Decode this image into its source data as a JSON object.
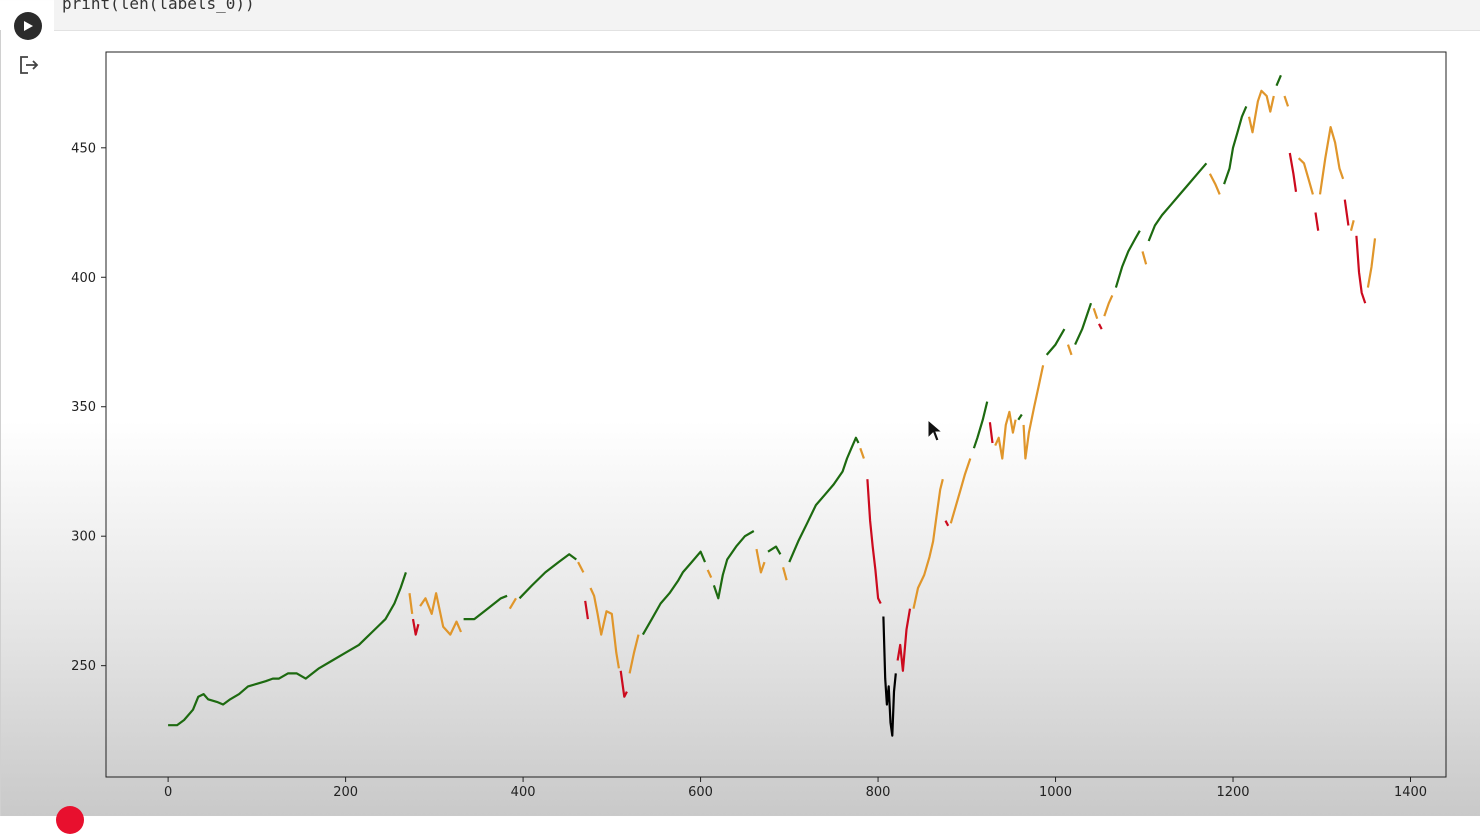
{
  "cell": {
    "code": "print(len(labels_0))",
    "run_icon": "play-icon",
    "output_icon": "output-arrow-icon"
  },
  "colors": {
    "green": "#1d6a10",
    "orange": "#e0962b",
    "red": "#cc0a1e",
    "black": "#000000"
  },
  "chart_data": {
    "type": "line",
    "title": "",
    "xlabel": "",
    "ylabel": "",
    "xlim": [
      -70,
      1440
    ],
    "ylim": [
      207,
      487
    ],
    "x_ticks": [
      0,
      200,
      400,
      600,
      800,
      1000,
      1200,
      1400
    ],
    "y_ticks": [
      250,
      300,
      350,
      400,
      450
    ],
    "grid": false,
    "legend": "none",
    "segments": [
      {
        "color": "green",
        "points": [
          [
            0,
            227
          ],
          [
            10,
            227
          ],
          [
            18,
            229
          ],
          [
            28,
            233
          ],
          [
            34,
            238
          ],
          [
            40,
            239
          ],
          [
            45,
            237
          ],
          [
            55,
            236
          ],
          [
            62,
            235
          ],
          [
            70,
            237
          ],
          [
            80,
            239
          ],
          [
            90,
            242
          ],
          [
            100,
            243
          ],
          [
            110,
            244
          ],
          [
            118,
            245
          ],
          [
            125,
            245
          ],
          [
            135,
            247
          ],
          [
            145,
            247
          ],
          [
            155,
            245
          ],
          [
            170,
            249
          ],
          [
            185,
            252
          ],
          [
            200,
            255
          ],
          [
            215,
            258
          ],
          [
            230,
            263
          ],
          [
            245,
            268
          ],
          [
            255,
            274
          ],
          [
            262,
            280
          ],
          [
            268,
            286
          ]
        ]
      },
      {
        "color": "orange",
        "points": [
          [
            272,
            278
          ],
          [
            275,
            270
          ]
        ]
      },
      {
        "color": "red",
        "points": [
          [
            276,
            268
          ],
          [
            279,
            262
          ],
          [
            282,
            266
          ]
        ]
      },
      {
        "color": "orange",
        "points": [
          [
            284,
            273
          ],
          [
            290,
            276
          ],
          [
            297,
            270
          ],
          [
            302,
            278
          ],
          [
            310,
            265
          ],
          [
            318,
            262
          ],
          [
            325,
            267
          ],
          [
            330,
            263
          ]
        ]
      },
      {
        "color": "green",
        "points": [
          [
            333,
            268
          ],
          [
            345,
            268
          ],
          [
            360,
            272
          ],
          [
            375,
            276
          ],
          [
            382,
            277
          ]
        ]
      },
      {
        "color": "orange",
        "points": [
          [
            385,
            272
          ],
          [
            392,
            276
          ]
        ]
      },
      {
        "color": "green",
        "points": [
          [
            396,
            276
          ],
          [
            410,
            281
          ],
          [
            425,
            286
          ],
          [
            440,
            290
          ],
          [
            452,
            293
          ],
          [
            460,
            291
          ]
        ]
      },
      {
        "color": "orange",
        "points": [
          [
            462,
            290
          ],
          [
            468,
            286
          ]
        ]
      },
      {
        "color": "red",
        "points": [
          [
            470,
            275
          ],
          [
            473,
            268
          ]
        ]
      },
      {
        "color": "orange",
        "points": [
          [
            476,
            280
          ],
          [
            480,
            277
          ],
          [
            484,
            270
          ],
          [
            488,
            262
          ],
          [
            494,
            271
          ],
          [
            500,
            270
          ],
          [
            505,
            255
          ],
          [
            508,
            249
          ]
        ]
      },
      {
        "color": "red",
        "points": [
          [
            510,
            248
          ],
          [
            514,
            238
          ],
          [
            517,
            240
          ]
        ]
      },
      {
        "color": "orange",
        "points": [
          [
            520,
            247
          ],
          [
            525,
            255
          ],
          [
            530,
            262
          ]
        ]
      },
      {
        "color": "green",
        "points": [
          [
            535,
            262
          ],
          [
            545,
            268
          ],
          [
            555,
            274
          ],
          [
            565,
            278
          ],
          [
            575,
            283
          ],
          [
            580,
            286
          ],
          [
            590,
            290
          ],
          [
            600,
            294
          ],
          [
            605,
            290
          ]
        ]
      },
      {
        "color": "orange",
        "points": [
          [
            608,
            287
          ],
          [
            612,
            284
          ]
        ]
      },
      {
        "color": "green",
        "points": [
          [
            615,
            281
          ],
          [
            620,
            276
          ],
          [
            625,
            285
          ],
          [
            630,
            291
          ],
          [
            640,
            296
          ],
          [
            650,
            300
          ],
          [
            660,
            302
          ]
        ]
      },
      {
        "color": "orange",
        "points": [
          [
            663,
            295
          ],
          [
            668,
            286
          ],
          [
            672,
            290
          ]
        ]
      },
      {
        "color": "green",
        "points": [
          [
            676,
            294
          ],
          [
            685,
            296
          ],
          [
            690,
            293
          ]
        ]
      },
      {
        "color": "orange",
        "points": [
          [
            693,
            288
          ],
          [
            697,
            283
          ]
        ]
      },
      {
        "color": "green",
        "points": [
          [
            700,
            290
          ],
          [
            710,
            298
          ],
          [
            720,
            305
          ],
          [
            730,
            312
          ],
          [
            740,
            316
          ],
          [
            750,
            320
          ],
          [
            760,
            325
          ],
          [
            765,
            330
          ],
          [
            770,
            334
          ],
          [
            775,
            338
          ],
          [
            778,
            336
          ]
        ]
      },
      {
        "color": "orange",
        "points": [
          [
            780,
            334
          ],
          [
            784,
            330
          ]
        ]
      },
      {
        "color": "red",
        "points": [
          [
            788,
            322
          ],
          [
            791,
            306
          ],
          [
            794,
            296
          ],
          [
            797,
            287
          ],
          [
            800,
            276
          ],
          [
            803,
            274
          ]
        ]
      },
      {
        "color": "black",
        "points": [
          [
            806,
            269
          ],
          [
            808,
            245
          ],
          [
            810,
            235
          ],
          [
            812,
            242
          ],
          [
            814,
            228
          ],
          [
            816,
            223
          ],
          [
            818,
            240
          ],
          [
            820,
            247
          ]
        ]
      },
      {
        "color": "red",
        "points": [
          [
            822,
            252
          ],
          [
            825,
            258
          ],
          [
            828,
            248
          ],
          [
            832,
            264
          ],
          [
            836,
            272
          ]
        ]
      },
      {
        "color": "orange",
        "points": [
          [
            840,
            272
          ],
          [
            845,
            280
          ],
          [
            852,
            285
          ],
          [
            858,
            292
          ],
          [
            862,
            298
          ],
          [
            866,
            308
          ],
          [
            870,
            318
          ],
          [
            873,
            322
          ]
        ]
      },
      {
        "color": "red",
        "points": [
          [
            876,
            306
          ],
          [
            879,
            304
          ]
        ]
      },
      {
        "color": "orange",
        "points": [
          [
            882,
            305
          ],
          [
            888,
            312
          ],
          [
            893,
            318
          ],
          [
            898,
            324
          ],
          [
            904,
            330
          ]
        ]
      },
      {
        "color": "green",
        "points": [
          [
            908,
            334
          ],
          [
            912,
            338
          ],
          [
            918,
            345
          ],
          [
            923,
            352
          ]
        ]
      },
      {
        "color": "red",
        "points": [
          [
            926,
            344
          ],
          [
            929,
            336
          ]
        ]
      },
      {
        "color": "orange",
        "points": [
          [
            932,
            335
          ],
          [
            936,
            338
          ],
          [
            940,
            330
          ],
          [
            944,
            343
          ],
          [
            948,
            348
          ],
          [
            952,
            340
          ],
          [
            955,
            345
          ]
        ]
      },
      {
        "color": "green",
        "points": [
          [
            958,
            345
          ],
          [
            962,
            347
          ]
        ]
      },
      {
        "color": "orange",
        "points": [
          [
            964,
            343
          ],
          [
            966,
            330
          ],
          [
            970,
            340
          ],
          [
            976,
            350
          ],
          [
            981,
            358
          ],
          [
            986,
            366
          ]
        ]
      },
      {
        "color": "green",
        "points": [
          [
            990,
            370
          ],
          [
            1000,
            374
          ],
          [
            1010,
            380
          ]
        ]
      },
      {
        "color": "orange",
        "points": [
          [
            1014,
            374
          ],
          [
            1018,
            370
          ]
        ]
      },
      {
        "color": "green",
        "points": [
          [
            1022,
            374
          ],
          [
            1030,
            380
          ],
          [
            1036,
            386
          ],
          [
            1040,
            390
          ]
        ]
      },
      {
        "color": "orange",
        "points": [
          [
            1043,
            388
          ],
          [
            1047,
            384
          ]
        ]
      },
      {
        "color": "red",
        "points": [
          [
            1049,
            382
          ],
          [
            1052,
            380
          ]
        ]
      },
      {
        "color": "orange",
        "points": [
          [
            1055,
            385
          ],
          [
            1060,
            390
          ],
          [
            1064,
            393
          ]
        ]
      },
      {
        "color": "green",
        "points": [
          [
            1068,
            396
          ],
          [
            1075,
            404
          ],
          [
            1082,
            410
          ],
          [
            1090,
            415
          ],
          [
            1095,
            418
          ]
        ]
      },
      {
        "color": "orange",
        "points": [
          [
            1098,
            410
          ],
          [
            1102,
            405
          ]
        ]
      },
      {
        "color": "green",
        "points": [
          [
            1105,
            414
          ],
          [
            1112,
            420
          ],
          [
            1120,
            424
          ],
          [
            1130,
            428
          ],
          [
            1140,
            432
          ],
          [
            1150,
            436
          ],
          [
            1160,
            440
          ],
          [
            1170,
            444
          ]
        ]
      },
      {
        "color": "orange",
        "points": [
          [
            1174,
            440
          ],
          [
            1180,
            436
          ],
          [
            1185,
            432
          ]
        ]
      },
      {
        "color": "green",
        "points": [
          [
            1190,
            436
          ],
          [
            1196,
            442
          ],
          [
            1200,
            450
          ],
          [
            1205,
            456
          ],
          [
            1210,
            462
          ],
          [
            1215,
            466
          ]
        ]
      },
      {
        "color": "orange",
        "points": [
          [
            1218,
            462
          ],
          [
            1222,
            456
          ],
          [
            1228,
            468
          ],
          [
            1232,
            472
          ],
          [
            1238,
            470
          ],
          [
            1242,
            464
          ],
          [
            1246,
            470
          ]
        ]
      },
      {
        "color": "green",
        "points": [
          [
            1249,
            474
          ],
          [
            1254,
            478
          ]
        ]
      },
      {
        "color": "orange",
        "points": [
          [
            1258,
            470
          ],
          [
            1262,
            466
          ]
        ]
      },
      {
        "color": "red",
        "points": [
          [
            1264,
            448
          ],
          [
            1268,
            440
          ],
          [
            1271,
            433
          ]
        ]
      },
      {
        "color": "orange",
        "points": [
          [
            1274,
            446
          ],
          [
            1280,
            444
          ],
          [
            1285,
            438
          ],
          [
            1290,
            432
          ]
        ]
      },
      {
        "color": "red",
        "points": [
          [
            1293,
            425
          ],
          [
            1296,
            418
          ]
        ]
      },
      {
        "color": "orange",
        "points": [
          [
            1298,
            432
          ],
          [
            1304,
            446
          ],
          [
            1310,
            458
          ],
          [
            1315,
            452
          ],
          [
            1320,
            442
          ],
          [
            1324,
            438
          ]
        ]
      },
      {
        "color": "red",
        "points": [
          [
            1326,
            430
          ],
          [
            1330,
            420
          ]
        ]
      },
      {
        "color": "orange",
        "points": [
          [
            1333,
            418
          ],
          [
            1336,
            422
          ]
        ]
      },
      {
        "color": "red",
        "points": [
          [
            1339,
            416
          ],
          [
            1342,
            402
          ],
          [
            1345,
            394
          ],
          [
            1349,
            390
          ]
        ]
      },
      {
        "color": "orange",
        "points": [
          [
            1352,
            396
          ],
          [
            1356,
            404
          ],
          [
            1360,
            415
          ]
        ]
      }
    ]
  }
}
